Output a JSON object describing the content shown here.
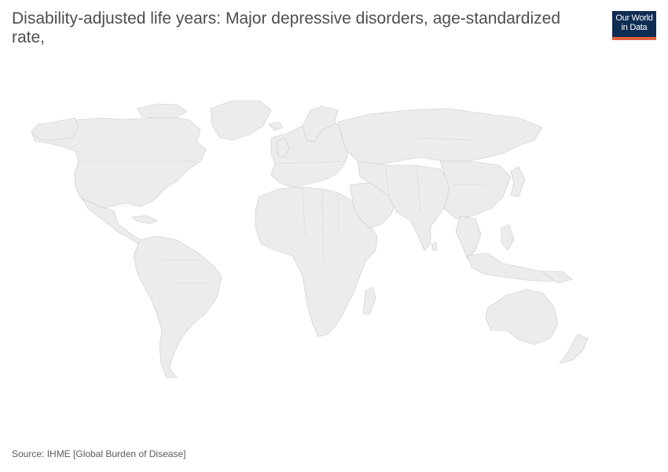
{
  "header": {
    "title": "Disability-adjusted life years: Major depressive disorders, age-standardized rate,"
  },
  "logo": {
    "line1": "Our World",
    "line2": "in Data",
    "background": "#0f2d52",
    "accent": "#e5603d"
  },
  "map": {
    "fill_color": "#ececec",
    "border_color": "#c9c9c9",
    "data_state": "no data"
  },
  "footer": {
    "source": "Source: IHME [Global Burden of Disease]"
  }
}
